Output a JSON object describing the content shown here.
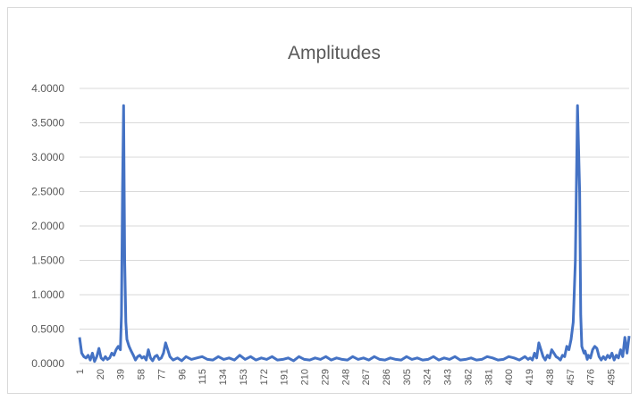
{
  "chart_data": {
    "type": "line",
    "title": "Amplitudes",
    "xlabel": "",
    "ylabel": "",
    "ylim": [
      0,
      4
    ],
    "yticks": [
      0,
      0.5,
      1,
      1.5,
      2,
      2.5,
      3,
      3.5,
      4
    ],
    "ytick_labels": [
      "0.0000",
      "0.5000",
      "1.0000",
      "1.5000",
      "2.0000",
      "2.5000",
      "3.0000",
      "3.5000",
      "4.0000"
    ],
    "xlim": [
      1,
      512
    ],
    "xtick_labels": [
      "1",
      "20",
      "39",
      "58",
      "77",
      "96",
      "115",
      "134",
      "153",
      "172",
      "191",
      "210",
      "229",
      "248",
      "267",
      "286",
      "305",
      "324",
      "343",
      "362",
      "381",
      "400",
      "419",
      "438",
      "457",
      "476",
      "495"
    ],
    "grid": true,
    "legend": "none",
    "series": [
      {
        "color": "#4472c4",
        "x": [
          1,
          3,
          5,
          7,
          9,
          11,
          13,
          15,
          17,
          19,
          21,
          23,
          25,
          27,
          29,
          31,
          33,
          35,
          37,
          39,
          40,
          41,
          42,
          43,
          44,
          45,
          47,
          49,
          51,
          53,
          55,
          57,
          59,
          61,
          63,
          65,
          67,
          69,
          71,
          73,
          75,
          77,
          79,
          81,
          83,
          85,
          88,
          92,
          96,
          100,
          105,
          110,
          115,
          120,
          125,
          130,
          135,
          140,
          145,
          150,
          155,
          160,
          165,
          170,
          175,
          180,
          185,
          190,
          195,
          200,
          205,
          210,
          215,
          220,
          225,
          230,
          235,
          240,
          245,
          250,
          255,
          260,
          265,
          270,
          275,
          280,
          285,
          290,
          295,
          300,
          305,
          310,
          315,
          320,
          325,
          330,
          335,
          340,
          345,
          350,
          355,
          360,
          365,
          370,
          375,
          380,
          385,
          390,
          395,
          400,
          405,
          410,
          415,
          418,
          420,
          422,
          424,
          426,
          428,
          430,
          432,
          434,
          436,
          438,
          440,
          442,
          444,
          446,
          448,
          450,
          452,
          454,
          456,
          458,
          460,
          462,
          464,
          466,
          467,
          468,
          469,
          470,
          471,
          472,
          473,
          474,
          476,
          478,
          480,
          482,
          484,
          486,
          488,
          490,
          492,
          494,
          496,
          498,
          500,
          502,
          504,
          506,
          508,
          510,
          512
        ],
        "y": [
          0.38,
          0.15,
          0.1,
          0.08,
          0.12,
          0.05,
          0.15,
          0.03,
          0.1,
          0.22,
          0.08,
          0.05,
          0.1,
          0.06,
          0.08,
          0.15,
          0.12,
          0.2,
          0.25,
          0.2,
          0.7,
          2.5,
          3.75,
          1.5,
          0.6,
          0.35,
          0.25,
          0.18,
          0.12,
          0.05,
          0.1,
          0.12,
          0.08,
          0.1,
          0.05,
          0.2,
          0.08,
          0.04,
          0.1,
          0.12,
          0.06,
          0.08,
          0.15,
          0.3,
          0.2,
          0.1,
          0.05,
          0.08,
          0.04,
          0.1,
          0.06,
          0.08,
          0.1,
          0.06,
          0.05,
          0.1,
          0.06,
          0.08,
          0.05,
          0.12,
          0.06,
          0.1,
          0.05,
          0.08,
          0.06,
          0.1,
          0.05,
          0.06,
          0.08,
          0.04,
          0.1,
          0.06,
          0.05,
          0.08,
          0.06,
          0.1,
          0.05,
          0.08,
          0.06,
          0.05,
          0.1,
          0.06,
          0.08,
          0.05,
          0.1,
          0.06,
          0.05,
          0.08,
          0.06,
          0.05,
          0.1,
          0.06,
          0.08,
          0.05,
          0.06,
          0.1,
          0.05,
          0.08,
          0.06,
          0.1,
          0.05,
          0.06,
          0.08,
          0.05,
          0.06,
          0.1,
          0.08,
          0.05,
          0.06,
          0.1,
          0.08,
          0.05,
          0.1,
          0.06,
          0.08,
          0.05,
          0.15,
          0.08,
          0.3,
          0.2,
          0.1,
          0.05,
          0.12,
          0.08,
          0.2,
          0.15,
          0.1,
          0.08,
          0.05,
          0.12,
          0.1,
          0.25,
          0.2,
          0.35,
          0.6,
          1.5,
          3.75,
          2.5,
          0.7,
          0.25,
          0.2,
          0.15,
          0.18,
          0.12,
          0.06,
          0.12,
          0.08,
          0.2,
          0.25,
          0.22,
          0.1,
          0.05,
          0.1,
          0.06,
          0.12,
          0.08,
          0.15,
          0.05,
          0.12,
          0.08,
          0.2,
          0.1,
          0.38,
          0.15,
          0.4
        ]
      }
    ]
  }
}
